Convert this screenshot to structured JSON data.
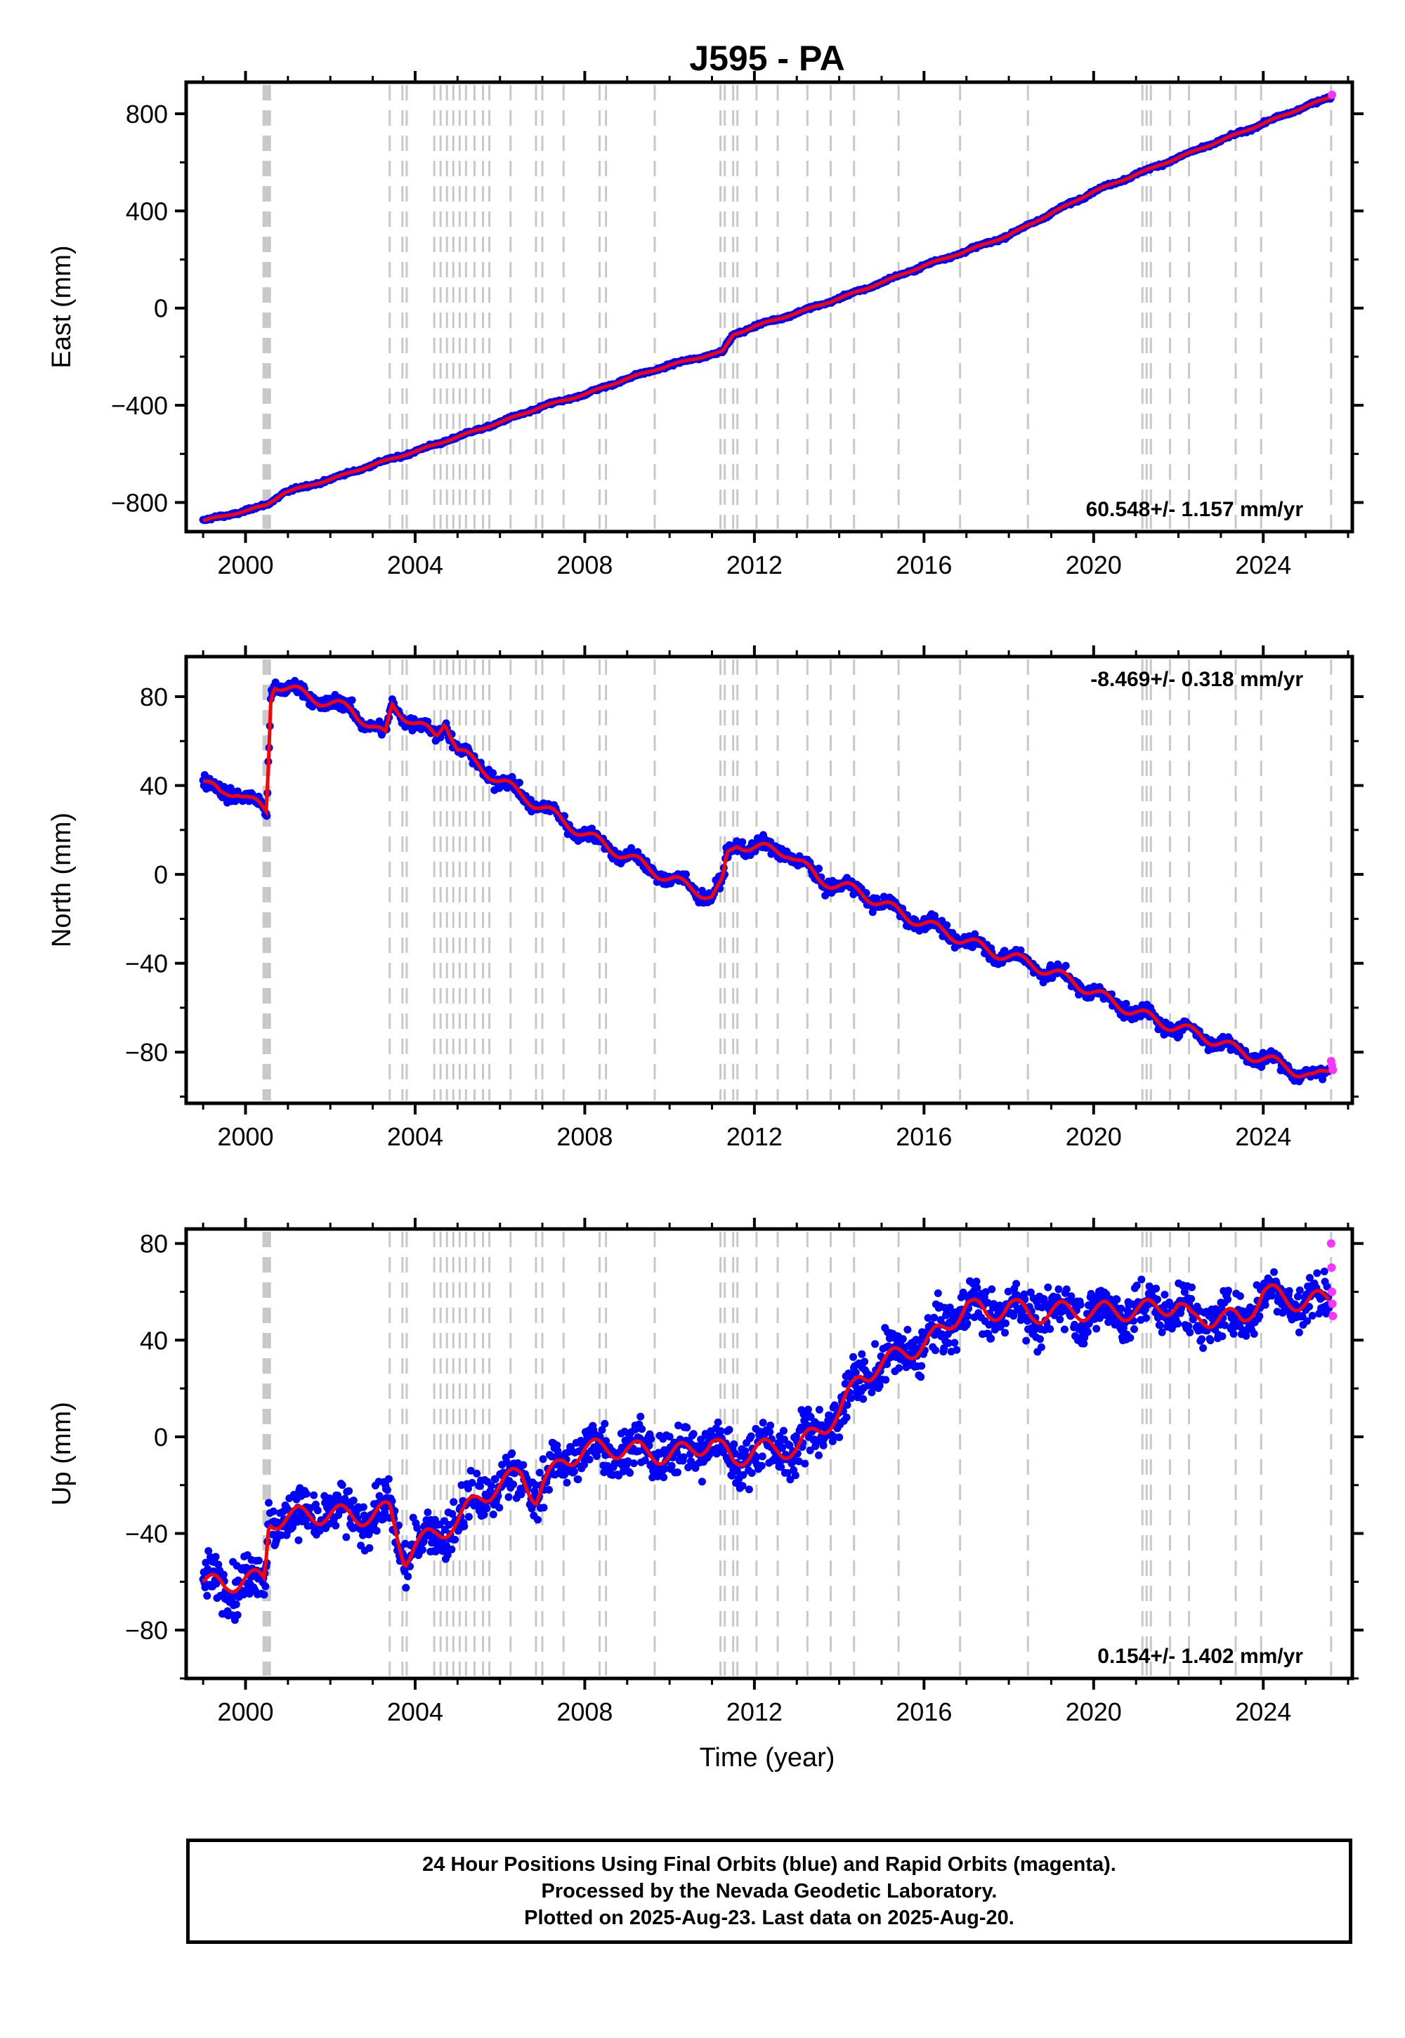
{
  "title": "J595 - PA",
  "xlabel": "Time (year)",
  "x_ticks": [
    "2000",
    "2004",
    "2008",
    "2012",
    "2016",
    "2020",
    "2024"
  ],
  "colors": {
    "final_orbits": "#0000ff",
    "rapid_orbits": "#ff33ff",
    "model_fit": "#ff0000",
    "equipment_change_lines": "#c8c8c8"
  },
  "footer": {
    "line1": "24 Hour Positions Using Final Orbits (blue) and Rapid Orbits (magenta).",
    "line2": "Processed by the Nevada Geodetic Laboratory.",
    "line3": "Plotted on 2025-Aug-23. Last data on 2025-Aug-20."
  },
  "chart_data": [
    {
      "type": "scatter",
      "panel": "east",
      "ylabel": "East (mm)",
      "yticks": [
        "800",
        "400",
        "0",
        "-400",
        "-800"
      ],
      "ylim": [
        -920,
        930
      ],
      "xlim": [
        1998.6,
        2026.1
      ],
      "rate_label": "60.548+/- 1.157 mm/yr",
      "rate_position": "bottom-right",
      "offset_line_years": [
        2000.45,
        2000.55,
        2003.4,
        2003.7,
        2003.8,
        2004.45,
        2004.6,
        2004.75,
        2004.9,
        2005.05,
        2005.2,
        2005.4,
        2005.6,
        2005.75,
        2006.25,
        2006.85,
        2007.0,
        2007.5,
        2008.35,
        2008.5,
        2009.65,
        2011.2,
        2011.3,
        2011.5,
        2011.6,
        2012.05,
        2012.55,
        2013.25,
        2013.8,
        2014.35,
        2015.4,
        2016.85,
        2018.45,
        2021.15,
        2021.25,
        2021.35,
        2021.8,
        2022.25,
        2023.35,
        2023.95,
        2025.6
      ],
      "series": [
        {
          "name": "Final Orbits",
          "x": [
            1999.0,
            2000.0,
            2000.5,
            2000.9,
            2002.0,
            2003.0,
            2004.0,
            2005.0,
            2006.0,
            2007.0,
            2008.0,
            2009.0,
            2010.0,
            2011.0,
            2011.25,
            2011.5,
            2012.0,
            2013.0,
            2014.0,
            2015.0,
            2016.0,
            2017.0,
            2018.0,
            2019.0,
            2020.0,
            2021.0,
            2022.0,
            2023.0,
            2024.0,
            2025.0,
            2025.6
          ],
          "y": [
            -875,
            -835,
            -810,
            -760,
            -705,
            -645,
            -590,
            -530,
            -470,
            -405,
            -355,
            -290,
            -235,
            -190,
            -180,
            -110,
            -75,
            -20,
            40,
            105,
            175,
            235,
            300,
            390,
            480,
            550,
            620,
            690,
            760,
            830,
            870
          ]
        },
        {
          "name": "Rapid Orbits",
          "x": [
            2025.62
          ],
          "y": [
            878
          ]
        }
      ]
    },
    {
      "type": "scatter",
      "panel": "north",
      "ylabel": "North (mm)",
      "yticks": [
        "80",
        "40",
        "0",
        "-40",
        "-80"
      ],
      "ylim": [
        -103,
        98
      ],
      "xlim": [
        1998.6,
        2026.1
      ],
      "rate_label": "-8.469+/- 0.318 mm/yr",
      "rate_position": "top-right",
      "offset_line_years": [
        2000.45,
        2000.55,
        2003.4,
        2003.7,
        2003.8,
        2004.45,
        2004.6,
        2004.75,
        2004.9,
        2005.05,
        2005.2,
        2005.4,
        2005.6,
        2005.75,
        2006.25,
        2006.85,
        2007.0,
        2007.5,
        2008.35,
        2008.5,
        2009.65,
        2011.2,
        2011.3,
        2011.5,
        2011.6,
        2012.05,
        2012.55,
        2013.25,
        2013.8,
        2014.35,
        2015.4,
        2016.85,
        2018.45,
        2021.15,
        2021.25,
        2021.35,
        2021.8,
        2022.25,
        2023.35,
        2023.95,
        2025.6
      ],
      "series": [
        {
          "name": "Final Orbits",
          "x": [
            1999.0,
            1999.4,
            1999.8,
            2000.2,
            2000.5,
            2000.6,
            2000.7,
            2001.5,
            2002.5,
            2003.3,
            2003.45,
            2004.0,
            2004.5,
            2004.7,
            2005.0,
            2006.0,
            2007.0,
            2008.0,
            2009.0,
            2010.0,
            2011.0,
            2011.25,
            2011.35,
            2011.6,
            2012.0,
            2012.8,
            2013.5,
            2014.5,
            2015.5,
            2016.5,
            2017.5,
            2018.5,
            2019.5,
            2020.5,
            2021.5,
            2022.5,
            2023.5,
            2024.5,
            2025.2,
            2025.55
          ],
          "y": [
            42,
            36,
            38,
            32,
            28,
            82,
            86,
            80,
            74,
            62,
            76,
            68,
            62,
            70,
            56,
            42,
            30,
            18,
            8,
            -2,
            -10,
            -4,
            8,
            14,
            12,
            10,
            -2,
            -8,
            -18,
            -26,
            -34,
            -40,
            -48,
            -58,
            -66,
            -72,
            -80,
            -86,
            -92,
            -88
          ]
        },
        {
          "name": "Rapid Orbits",
          "x": [
            2025.6,
            2025.62,
            2025.64
          ],
          "y": [
            -84,
            -86,
            -88
          ]
        }
      ]
    },
    {
      "type": "scatter",
      "panel": "up",
      "ylabel": "Up (mm)",
      "yticks": [
        "80",
        "40",
        "0",
        "-40",
        "-80"
      ],
      "ylim": [
        -100,
        86
      ],
      "xlim": [
        1998.6,
        2026.1
      ],
      "rate_label": "0.154+/- 1.402 mm/yr",
      "rate_position": "bottom-right",
      "offset_line_years": [
        2000.45,
        2000.55,
        2003.4,
        2003.7,
        2003.8,
        2004.45,
        2004.6,
        2004.75,
        2004.9,
        2005.05,
        2005.2,
        2005.4,
        2005.6,
        2005.75,
        2006.25,
        2006.85,
        2007.0,
        2007.5,
        2008.35,
        2008.5,
        2009.65,
        2011.2,
        2011.3,
        2011.5,
        2011.6,
        2012.05,
        2012.55,
        2013.25,
        2013.8,
        2014.35,
        2015.4,
        2016.85,
        2018.45,
        2021.15,
        2021.25,
        2021.35,
        2021.8,
        2022.25,
        2023.35,
        2023.95,
        2025.6
      ],
      "series": [
        {
          "name": "Final Orbits",
          "x": [
            1999.0,
            1999.5,
            2000.0,
            2000.45,
            2000.55,
            2001.0,
            2002.0,
            2003.0,
            2003.4,
            2003.75,
            2004.0,
            2004.5,
            2005.0,
            2005.5,
            2006.0,
            2006.5,
            2006.85,
            2007.0,
            2007.5,
            2008.0,
            2009.0,
            2010.0,
            2011.0,
            2011.5,
            2012.0,
            2013.0,
            2014.0,
            2014.5,
            2015.0,
            2015.5,
            2016.0,
            2016.5,
            2017.0,
            2017.5,
            2018.0,
            2018.5,
            2019.0,
            2020.0,
            2021.0,
            2022.0,
            2022.3,
            2023.0,
            2023.5,
            2024.0,
            2025.0,
            2025.55
          ],
          "y": [
            -60,
            -62,
            -58,
            -60,
            -35,
            -33,
            -32,
            -33,
            -30,
            -50,
            -45,
            -40,
            -35,
            -25,
            -20,
            -15,
            -25,
            -20,
            -10,
            -5,
            -5,
            -8,
            -2,
            -10,
            -5,
            -5,
            10,
            25,
            30,
            35,
            38,
            45,
            55,
            50,
            55,
            50,
            52,
            52,
            52,
            55,
            48,
            50,
            48,
            60,
            55,
            58
          ]
        },
        {
          "name": "Rapid Orbits",
          "x": [
            2025.6,
            2025.61,
            2025.62,
            2025.63,
            2025.64
          ],
          "y": [
            80,
            70,
            60,
            55,
            50
          ]
        }
      ]
    }
  ]
}
